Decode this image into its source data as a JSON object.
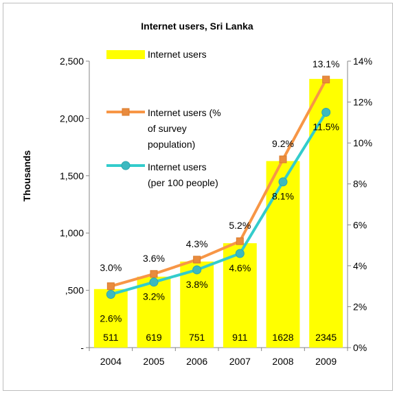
{
  "chart_data": {
    "type": "bar",
    "title": "Internet users, Sri Lanka",
    "categories": [
      "2004",
      "2005",
      "2006",
      "2007",
      "2008",
      "2009"
    ],
    "ylabel": "Thousands",
    "ylim": [
      0,
      2500
    ],
    "y_ticks": [
      "-",
      ",500",
      "1,000",
      "1,500",
      "2,000",
      "2,500"
    ],
    "y2lim": [
      0,
      14
    ],
    "y2_ticks": [
      "0%",
      "2%",
      "4%",
      "6%",
      "8%",
      "10%",
      "12%",
      "14%"
    ],
    "grid": false,
    "legend_position": "inside-top-left",
    "series": [
      {
        "name": "Internet users",
        "type": "bar",
        "axis": "left",
        "color": "#ffff00",
        "values": [
          511,
          619,
          751,
          911,
          1628,
          2345
        ],
        "data_labels": [
          "511",
          "619",
          "751",
          "911",
          "1628",
          "2345"
        ]
      },
      {
        "name": "Internet users (% of survey population)",
        "legend_lines": [
          "Internet users (%",
          "of survey",
          "population)"
        ],
        "type": "line",
        "axis": "right",
        "color": "#f79646",
        "marker": "square",
        "values": [
          3.0,
          3.6,
          4.3,
          5.2,
          9.2,
          13.1
        ],
        "data_labels": [
          "3.0%",
          "3.6%",
          "4.3%",
          "5.2%",
          "9.2%",
          "13.1%"
        ]
      },
      {
        "name": "Internet users (per 100 people)",
        "legend_lines": [
          "Internet users",
          "(per 100 people)"
        ],
        "type": "line",
        "axis": "right",
        "color": "#33cccc",
        "marker": "circle",
        "values": [
          2.6,
          3.2,
          3.8,
          4.6,
          8.1,
          11.5
        ],
        "data_labels": [
          "2.6%",
          "3.2%",
          "3.8%",
          "4.6%",
          "8.1%",
          "11.5%"
        ]
      }
    ]
  }
}
